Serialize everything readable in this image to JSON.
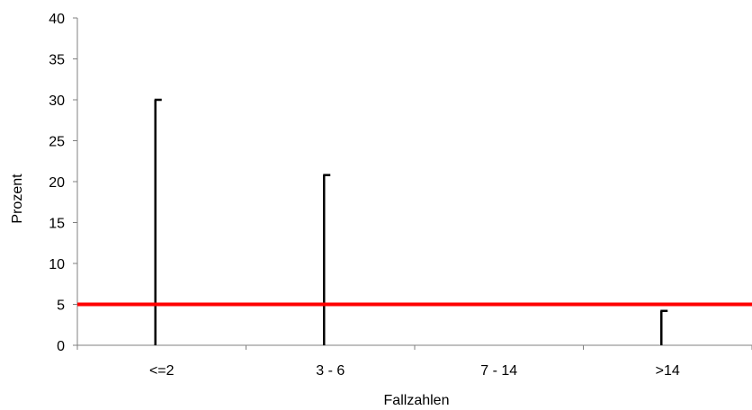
{
  "chart_data": {
    "type": "bar",
    "title": "",
    "xlabel": "Fallzahlen",
    "ylabel": "Prozent",
    "categories": [
      "<=2",
      "3 - 6",
      "7 - 14",
      ">14"
    ],
    "values": [
      30,
      20.8,
      0,
      4.2
    ],
    "ylim": [
      0,
      40
    ],
    "yticks": [
      "0",
      "5",
      "10",
      "15",
      "20",
      "25",
      "30",
      "35",
      "40"
    ],
    "reference_line": {
      "value": 5,
      "color": "#ff0000"
    },
    "grid": false,
    "legend": "none",
    "colors": {
      "bar": "#000000",
      "axis": "#808080",
      "reference": "#ff0000"
    }
  }
}
